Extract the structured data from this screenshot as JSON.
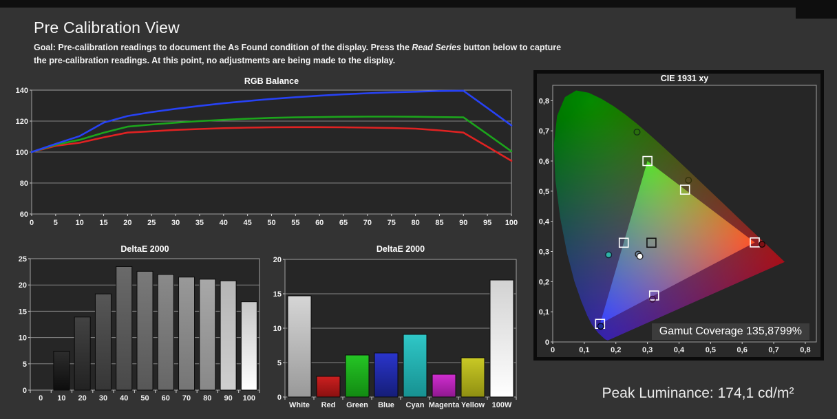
{
  "header": {
    "title": "Pre Calibration View",
    "goal_prefix": "Goal: Pre-calibration readings to document the As Found condition of the display. Press the ",
    "goal_italic": "Read Series",
    "goal_suffix": " button below to capture the pre-calibration readings. At this point, no adjustments are being made to the display."
  },
  "footer": {
    "peak_luminance": "Peak Luminance: 174,1 cd/m²"
  },
  "colors": {
    "page_bg": "#333333",
    "plot_bg": "#262626",
    "grid": "#a0a0a0",
    "tick_text": "#f0f0f0",
    "red_line": "#e02222",
    "green_line": "#1ca51c",
    "blue_line": "#2742f5"
  },
  "chart_data": [
    {
      "id": "rgb_balance",
      "type": "line",
      "title": "RGB Balance",
      "x": [
        0,
        5,
        10,
        15,
        20,
        25,
        30,
        35,
        40,
        45,
        50,
        55,
        60,
        65,
        70,
        75,
        80,
        85,
        90,
        95,
        100
      ],
      "xtick_labels": [
        "0",
        "5",
        "10",
        "15",
        "20",
        "25",
        "30",
        "35",
        "40",
        "45",
        "50",
        "55",
        "60",
        "65",
        "70",
        "75",
        "80",
        "85",
        "90",
        "95",
        "100"
      ],
      "ylim": [
        60,
        140
      ],
      "yticks": [
        60,
        80,
        100,
        120,
        140
      ],
      "grid": true,
      "series": [
        {
          "name": "Red",
          "color": "#e02222",
          "values": [
            100,
            104,
            106,
            109.5,
            112.6,
            113.4,
            114.3,
            114.9,
            115.4,
            115.8,
            116,
            116.1,
            116.1,
            116,
            115.8,
            115.5,
            115.1,
            114,
            112.6,
            103.5,
            94.3
          ]
        },
        {
          "name": "Green",
          "color": "#1ca51c",
          "values": [
            100,
            104.7,
            107.9,
            112.5,
            116.4,
            117.8,
            119,
            120,
            120.8,
            121.5,
            122.1,
            122.4,
            122.6,
            122.8,
            122.9,
            122.9,
            122.8,
            122.6,
            122.4,
            111.5,
            100.5
          ]
        },
        {
          "name": "Blue",
          "color": "#2742f5",
          "values": [
            100,
            105.3,
            110.3,
            119,
            123.3,
            125.8,
            127.9,
            129.8,
            131.5,
            133,
            134.3,
            135.4,
            136.4,
            137.3,
            138,
            138.6,
            139,
            139.4,
            139.6,
            128.5,
            117.2
          ]
        }
      ]
    },
    {
      "id": "grayscale_deltae",
      "type": "bar",
      "title": "DeltaE 2000",
      "categories": [
        "0",
        "10",
        "20",
        "30",
        "40",
        "50",
        "60",
        "70",
        "80",
        "90",
        "100"
      ],
      "values": [
        0,
        7.4,
        13.9,
        18.3,
        23.5,
        22.6,
        22.0,
        21.5,
        21.1,
        20.8,
        16.8
      ],
      "ylim": [
        0,
        25
      ],
      "yticks": [
        0,
        5,
        10,
        15,
        20,
        25
      ],
      "grid": true,
      "bar_gradients": [
        [
          "#1c1c1c",
          "#060606"
        ],
        [
          "#2d2d2d",
          "#0d0d0d"
        ],
        [
          "#434343",
          "#222222"
        ],
        [
          "#575757",
          "#363636"
        ],
        [
          "#6a6a6a",
          "#484848"
        ],
        [
          "#7a7a7a",
          "#575757"
        ],
        [
          "#8a8a8a",
          "#666666"
        ],
        [
          "#999999",
          "#757575"
        ],
        [
          "#a8a8a8",
          "#888888"
        ],
        [
          "#b5b5b5",
          "#cfcfcf"
        ],
        [
          "#c6c6c6",
          "#ffffff"
        ]
      ]
    },
    {
      "id": "color_deltae",
      "type": "bar",
      "title": "DeltaE 2000",
      "categories": [
        "White",
        "Red",
        "Green",
        "Blue",
        "Cyan",
        "Magenta",
        "Yellow",
        "100W"
      ],
      "values": [
        14.7,
        3.0,
        6.1,
        6.4,
        9.1,
        3.3,
        5.7,
        17.0
      ],
      "ylim": [
        0,
        20
      ],
      "yticks": [
        0,
        5,
        10,
        15,
        20
      ],
      "grid": true,
      "bar_gradients": [
        [
          "#d6d6d6",
          "#999999"
        ],
        [
          "#cc2020",
          "#8a1010"
        ],
        [
          "#25c525",
          "#128a12"
        ],
        [
          "#2a35cc",
          "#151d77"
        ],
        [
          "#2fc7c7",
          "#179191"
        ],
        [
          "#d02ed0",
          "#8f188f"
        ],
        [
          "#c9c925",
          "#8f8f12"
        ],
        [
          "#d2d2d2",
          "#ffffff"
        ]
      ]
    },
    {
      "id": "cie1931",
      "type": "scatter",
      "title": "CIE 1931 xy",
      "xlim": [
        0,
        0.835
      ],
      "ylim": [
        0,
        0.851
      ],
      "xtick_values": [
        0,
        0.1,
        0.2,
        0.3,
        0.4,
        0.5,
        0.6,
        0.7,
        0.8
      ],
      "xtick_labels": [
        "0",
        "0,1",
        "0,2",
        "0,3",
        "0,4",
        "0,5",
        "0,6",
        "0,7",
        "0,8"
      ],
      "ytick_values": [
        0,
        0.1,
        0.2,
        0.3,
        0.4,
        0.5,
        0.6,
        0.7,
        0.8
      ],
      "ytick_labels": [
        "0",
        "0,1",
        "0,2",
        "0,3",
        "0,4",
        "0,5",
        "0,6",
        "0,7",
        "0,8"
      ],
      "gamut_coverage": "Gamut Coverage 135,8799%",
      "reference_triangle": {
        "red": [
          0.64,
          0.33
        ],
        "green": [
          0.3,
          0.6
        ],
        "blue": [
          0.15,
          0.06
        ]
      },
      "targets": [
        {
          "name": "red-target",
          "x": 0.64,
          "y": 0.33,
          "stroke": "#ffffff"
        },
        {
          "name": "green-target",
          "x": 0.3,
          "y": 0.6,
          "stroke": "#ffffff"
        },
        {
          "name": "blue-target",
          "x": 0.15,
          "y": 0.06,
          "stroke": "#ffffff"
        },
        {
          "name": "cyan-target",
          "x": 0.225,
          "y": 0.329,
          "stroke": "#ffffff"
        },
        {
          "name": "magenta-target",
          "x": 0.321,
          "y": 0.154,
          "stroke": "#ffffff"
        },
        {
          "name": "yellow-target",
          "x": 0.419,
          "y": 0.505,
          "stroke": "#ffffff"
        },
        {
          "name": "white-target",
          "x": 0.3127,
          "y": 0.329,
          "stroke": "#111111"
        }
      ],
      "measured": [
        {
          "name": "green-measured",
          "x": 0.267,
          "y": 0.696,
          "fill": "none",
          "stroke": "#143214"
        },
        {
          "name": "yellow-measured",
          "x": 0.43,
          "y": 0.536,
          "fill": "none",
          "stroke": "#32320a"
        },
        {
          "name": "red-measured",
          "x": 0.663,
          "y": 0.324,
          "fill": "#7d1114",
          "stroke": "#1a0505"
        },
        {
          "name": "cyan-measured",
          "x": 0.177,
          "y": 0.289,
          "fill": "#2fb3a7",
          "stroke": "#112233"
        },
        {
          "name": "white-measured-a",
          "x": 0.271,
          "y": 0.291,
          "fill": "none",
          "stroke": "#222222"
        },
        {
          "name": "white-measured-b",
          "x": 0.276,
          "y": 0.284,
          "fill": "#ffffff",
          "stroke": "#222222"
        },
        {
          "name": "magenta-measured",
          "x": 0.316,
          "y": 0.142,
          "fill": "none",
          "stroke": "#3a0f3a"
        },
        {
          "name": "blue-measured",
          "x": 0.152,
          "y": 0.052,
          "fill": "#1c2a96",
          "stroke": "#05051e"
        }
      ]
    }
  ]
}
